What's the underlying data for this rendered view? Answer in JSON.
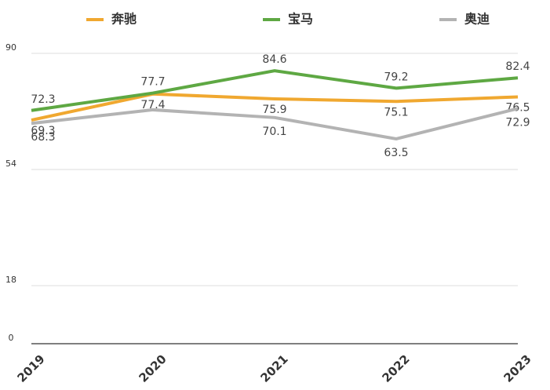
{
  "chart_data": {
    "type": "line",
    "categories": [
      "2019",
      "2020",
      "2021",
      "2022",
      "2023"
    ],
    "series": [
      {
        "name": "奔驰",
        "color": "#f0a830",
        "values": [
          69.3,
          77.4,
          75.9,
          75.1,
          76.5
        ]
      },
      {
        "name": "宝马",
        "color": "#5ea843",
        "values": [
          72.3,
          77.7,
          84.6,
          79.2,
          82.4
        ]
      },
      {
        "name": "奥迪",
        "color": "#b3b3b3",
        "values": [
          68.3,
          72.5,
          70.1,
          63.5,
          72.9
        ],
        "value_labels": [
          "68.3",
          null,
          "70.1",
          "63.5",
          "72.9"
        ]
      }
    ],
    "ylim": [
      0,
      90
    ],
    "yticks": [
      0,
      18,
      54,
      90
    ],
    "grid": true
  }
}
